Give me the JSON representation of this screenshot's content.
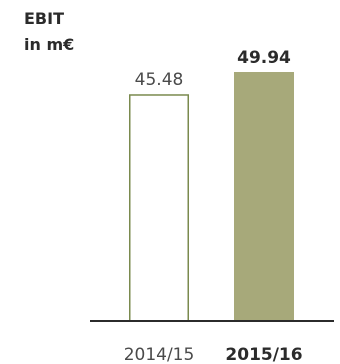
{
  "chart_data": {
    "type": "bar",
    "title": "EBIT",
    "subtitle": "in m€",
    "categories": [
      "2014/15",
      "2015/16"
    ],
    "values": [
      45.48,
      49.94
    ],
    "value_labels": [
      "45.48",
      "49.94"
    ],
    "highlight_index": 1,
    "ylim": [
      0,
      49.94
    ],
    "grid": false,
    "colors": {
      "outline_bar_stroke": "#7a8a4e",
      "outline_bar_fill": "#ffffff",
      "highlight_bar_fill": "#a7a97a",
      "baseline": "#2b2b2b"
    }
  }
}
